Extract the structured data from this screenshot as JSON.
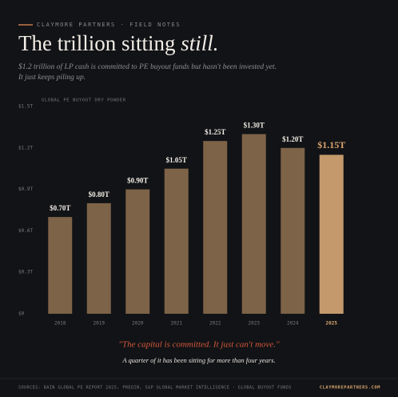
{
  "header": {
    "brand": "CLAYMORE PARTNERS · FIELD NOTES"
  },
  "chart_data": {
    "type": "bar",
    "title": "The trillion sitting",
    "title_emphasis": "still.",
    "subtitle": [
      "$1.2 trillion of LP cash is committed to PE buyout funds but hasn't been invested yet.",
      "It just keeps piling up."
    ],
    "y_label": "GLOBAL PE BUYOUT DRY POWDER",
    "categories": [
      "2018",
      "2019",
      "2020",
      "2021",
      "2022",
      "2023",
      "2024",
      "2025"
    ],
    "values": [
      0.7,
      0.8,
      0.9,
      1.05,
      1.25,
      1.3,
      1.2,
      1.15
    ],
    "value_labels": [
      "$0.70T",
      "$0.80T",
      "$0.90T",
      "$1.05T",
      "$1.25T",
      "$1.30T",
      "$1.20T",
      "$1.15T"
    ],
    "colors": [
      "#7d6347",
      "#7d6347",
      "#7d6347",
      "#7d6347",
      "#7d6347",
      "#7d6347",
      "#7d6347",
      "#c49a6c"
    ],
    "value_label_colors": [
      "#f2ede6",
      "#f2ede6",
      "#f2ede6",
      "#f2ede6",
      "#f2ede6",
      "#f2ede6",
      "#f2ede6",
      "#d9a56f"
    ],
    "ylim": [
      0,
      1.5
    ],
    "yticks": [
      {
        "value": 0,
        "label": "$0"
      },
      {
        "value": 0.3,
        "label": "$0.3T"
      },
      {
        "value": 0.6,
        "label": "$0.6T"
      },
      {
        "value": 0.9,
        "label": "$0.9T"
      },
      {
        "value": 1.2,
        "label": "$1.2T"
      },
      {
        "value": 1.5,
        "label": "$1.5T"
      }
    ],
    "grid": false
  },
  "quote": "\"The capital is committed. It just can't move.\"",
  "note": "A quarter of it has been sitting for more than four years.",
  "footer": {
    "sources": "SOURCES: BAIN GLOBAL PE REPORT 2025, PREQIN, S&P GLOBAL MARKET INTELLIGENCE · GLOBAL BUYOUT FUNDS",
    "site": "CLAYMOREPARTNERS.COM"
  }
}
